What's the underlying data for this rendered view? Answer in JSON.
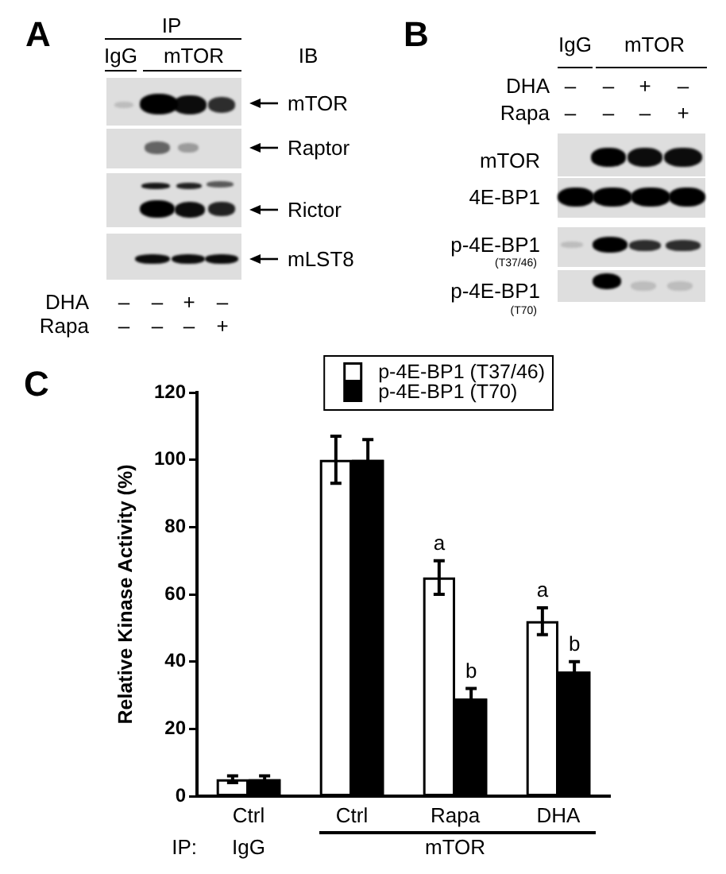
{
  "chart_data": [
    {
      "type": "other",
      "title": "A",
      "annotations": [
        "IP",
        "IgG",
        "mTOR",
        "IB",
        "mTOR",
        "Raptor",
        "Rictor",
        "mLST8",
        "DHA",
        "–",
        "–",
        "+",
        "–",
        "Rapa",
        "–",
        "–",
        "–",
        "+"
      ]
    },
    {
      "type": "other",
      "title": "B",
      "annotations": [
        "IgG",
        "mTOR",
        "DHA",
        "–",
        "–",
        "+",
        "–",
        "Rapa",
        "–",
        "–",
        "–",
        "+",
        "mTOR",
        "4E-BP1",
        "p-4E-BP1",
        "(T37/46)",
        "p-4E-BP1",
        "(T70)"
      ]
    },
    {
      "type": "bar",
      "title": "C",
      "ylabel": "Relative Kinase Activity (%)",
      "categories": [
        "Ctrl",
        "Ctrl",
        "Rapa",
        "DHA"
      ],
      "series": [
        {
          "name": "p-4E-BP1 (T37/46)",
          "color": "#ffffff",
          "values": [
            5,
            100,
            65,
            52
          ],
          "errors": [
            1,
            7,
            5,
            4
          ],
          "value_labels": [
            null,
            null,
            "a",
            "a"
          ]
        },
        {
          "name": "p-4E-BP1 (T70)",
          "color": "#000000",
          "values": [
            5,
            100,
            29,
            37
          ],
          "errors": [
            1,
            6,
            3,
            3
          ],
          "value_labels": [
            null,
            null,
            "b",
            "b"
          ]
        }
      ],
      "ylim": [
        0,
        120
      ],
      "yticks": [
        0,
        20,
        40,
        60,
        80,
        100,
        120
      ],
      "legend": "top",
      "annotations": [
        "IP:",
        "IgG",
        "mTOR"
      ]
    }
  ]
}
